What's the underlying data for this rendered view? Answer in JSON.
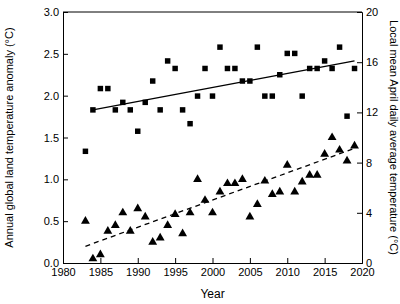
{
  "chart_data": {
    "type": "scatter",
    "x_label": "Year",
    "y_label": "Annual global land temperature anomaly (°C)",
    "y2_label": "Local mean April daily average temperature (°C)",
    "xlim": [
      1980,
      2020
    ],
    "xticks": [
      1980,
      1985,
      1990,
      1995,
      2000,
      2005,
      2010,
      2015,
      2020
    ],
    "ylim": [
      0,
      3
    ],
    "yticks": [
      {
        "value": 0,
        "label": "0.0"
      },
      0.5,
      {
        "value": 1,
        "label": "1.0"
      },
      1.5,
      {
        "value": 2,
        "label": "2.0"
      },
      2.5,
      {
        "value": 3,
        "label": "3.0"
      }
    ],
    "y2lim": [
      0,
      20
    ],
    "y2ticks": [
      0,
      4,
      8,
      12,
      16,
      20
    ],
    "x": [
      1983,
      1984,
      1985,
      1986,
      1987,
      1988,
      1989,
      1990,
      1991,
      1992,
      1993,
      1994,
      1995,
      1996,
      1997,
      1998,
      1999,
      2000,
      2001,
      2002,
      2003,
      2004,
      2005,
      2006,
      2007,
      2008,
      2009,
      2010,
      2011,
      2012,
      2013,
      2014,
      2015,
      2016,
      2017,
      2018,
      2019
    ],
    "series": [
      {
        "type": "scatter",
        "marker": "square",
        "color": "#000000",
        "axis": "y2",
        "values": [
          8.9,
          12.2,
          13.9,
          13.9,
          12.2,
          12.8,
          12.2,
          10.5,
          12.8,
          14.5,
          12.2,
          16.1,
          15.5,
          12.2,
          11.1,
          13.3,
          15.5,
          13.3,
          17.2,
          15.5,
          15.5,
          14.5,
          14.5,
          17.2,
          13.3,
          13.3,
          15.0,
          16.7,
          16.7,
          13.3,
          15.5,
          15.5,
          16.1,
          15.5,
          17.2,
          11.7,
          15.5
        ]
      },
      {
        "type": "scatter",
        "marker": "triangle",
        "color": "#000000",
        "values": [
          0.5,
          0.05,
          0.1,
          0.38,
          0.45,
          0.6,
          0.38,
          0.65,
          0.55,
          0.25,
          0.3,
          0.45,
          0.58,
          0.35,
          0.6,
          1.0,
          0.75,
          0.6,
          0.85,
          0.95,
          0.95,
          1.0,
          0.55,
          0.7,
          0.98,
          0.82,
          0.85,
          1.17,
          0.85,
          0.97,
          1.05,
          1.05,
          1.3,
          1.5,
          1.35,
          1.22,
          1.4
        ]
      },
      {
        "type": "line",
        "line_style": "solid",
        "color": "#000000",
        "axis": "y2",
        "x": [
          1984,
          2019
        ],
        "values": [
          12.2,
          16.1
        ]
      },
      {
        "type": "line",
        "line_style": "dashed",
        "color": "#000000",
        "x": [
          1983,
          2019
        ],
        "values": [
          0.2,
          1.37
        ]
      }
    ]
  }
}
